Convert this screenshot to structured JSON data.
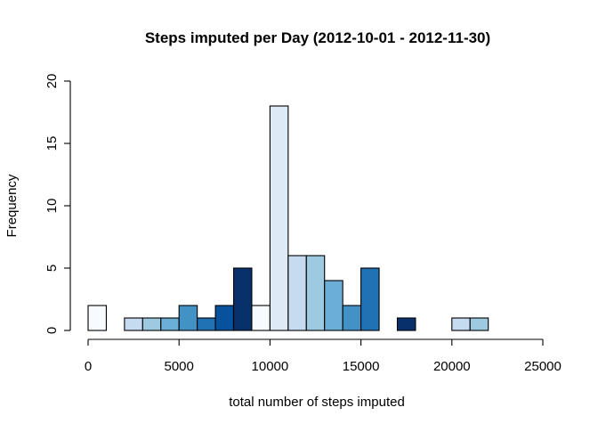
{
  "chart_data": {
    "type": "histogram",
    "title": "Steps imputed per Day (2012-10-01 - 2012-11-30)",
    "xlabel": "total number of steps imputed",
    "ylabel": "Frequency",
    "xlim": [
      0,
      25000
    ],
    "ylim": [
      0,
      20
    ],
    "x_ticks": [
      0,
      5000,
      10000,
      15000,
      20000,
      25000
    ],
    "y_ticks": [
      0,
      5,
      10,
      15,
      20
    ],
    "x_tick_labels": [
      "0",
      "5000",
      "10000",
      "15000",
      "20000",
      "25000"
    ],
    "y_tick_labels": [
      "0",
      "5",
      "10",
      "15",
      "20"
    ],
    "bin_width": 1000,
    "bins": [
      {
        "x0": 0,
        "x1": 1000,
        "count": 2,
        "color": "#f7fbff"
      },
      {
        "x0": 1000,
        "x1": 2000,
        "count": 0,
        "color": "#deebf7"
      },
      {
        "x0": 2000,
        "x1": 3000,
        "count": 1,
        "color": "#c6dbef"
      },
      {
        "x0": 3000,
        "x1": 4000,
        "count": 1,
        "color": "#9ecae1"
      },
      {
        "x0": 4000,
        "x1": 5000,
        "count": 1,
        "color": "#6baed6"
      },
      {
        "x0": 5000,
        "x1": 6000,
        "count": 2,
        "color": "#4292c6"
      },
      {
        "x0": 6000,
        "x1": 7000,
        "count": 1,
        "color": "#2171b5"
      },
      {
        "x0": 7000,
        "x1": 8000,
        "count": 2,
        "color": "#08519c"
      },
      {
        "x0": 8000,
        "x1": 9000,
        "count": 5,
        "color": "#08306b"
      },
      {
        "x0": 9000,
        "x1": 10000,
        "count": 2,
        "color": "#f7fbff"
      },
      {
        "x0": 10000,
        "x1": 11000,
        "count": 18,
        "color": "#deebf7"
      },
      {
        "x0": 11000,
        "x1": 12000,
        "count": 6,
        "color": "#c6dbef"
      },
      {
        "x0": 12000,
        "x1": 13000,
        "count": 6,
        "color": "#9ecae1"
      },
      {
        "x0": 13000,
        "x1": 14000,
        "count": 4,
        "color": "#6baed6"
      },
      {
        "x0": 14000,
        "x1": 15000,
        "count": 2,
        "color": "#4292c6"
      },
      {
        "x0": 15000,
        "x1": 16000,
        "count": 5,
        "color": "#2171b5"
      },
      {
        "x0": 16000,
        "x1": 17000,
        "count": 0,
        "color": "#08519c"
      },
      {
        "x0": 17000,
        "x1": 18000,
        "count": 1,
        "color": "#08306b"
      },
      {
        "x0": 18000,
        "x1": 19000,
        "count": 0,
        "color": "#f7fbff"
      },
      {
        "x0": 19000,
        "x1": 20000,
        "count": 0,
        "color": "#deebf7"
      },
      {
        "x0": 20000,
        "x1": 21000,
        "count": 1,
        "color": "#c6dbef"
      },
      {
        "x0": 21000,
        "x1": 22000,
        "count": 1,
        "color": "#9ecae1"
      }
    ],
    "grid": false,
    "legend": "none"
  }
}
